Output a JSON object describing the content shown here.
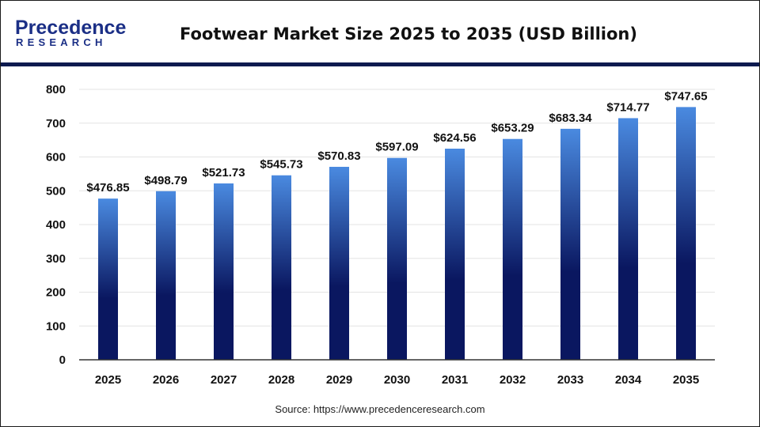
{
  "brand": {
    "logo_main": "Precedence",
    "logo_sub": "RESEARCH",
    "color": "#1b2f86"
  },
  "header": {
    "title": "Footwear Market Size 2025 to 2035 (USD Billion)",
    "rule_color": "#0d1a4f"
  },
  "footer": {
    "source": "Source: https://www.precedenceresearch.com"
  },
  "colors": {
    "bar_top": "#4a8ae0",
    "bar_bottom": "#0a1760",
    "grid": "#e3e3e3",
    "axis": "#333333"
  },
  "chart_data": {
    "type": "bar",
    "title": "Footwear Market Size 2025 to 2035 (USD Billion)",
    "xlabel": "",
    "ylabel": "",
    "ylim": [
      0,
      800
    ],
    "yticks": [
      0,
      100,
      200,
      300,
      400,
      500,
      600,
      700,
      800
    ],
    "grid": true,
    "categories": [
      "2025",
      "2026",
      "2027",
      "2028",
      "2029",
      "2030",
      "2031",
      "2032",
      "2033",
      "2034",
      "2035"
    ],
    "values": [
      476.85,
      498.79,
      521.73,
      545.73,
      570.83,
      597.09,
      624.56,
      653.29,
      683.34,
      714.77,
      747.65
    ],
    "data_labels": [
      "$476.85",
      "$498.79",
      "$521.73",
      "$545.73",
      "$570.83",
      "$597.09",
      "$624.56",
      "$653.29",
      "$683.34",
      "$714.77",
      "$747.65"
    ]
  }
}
